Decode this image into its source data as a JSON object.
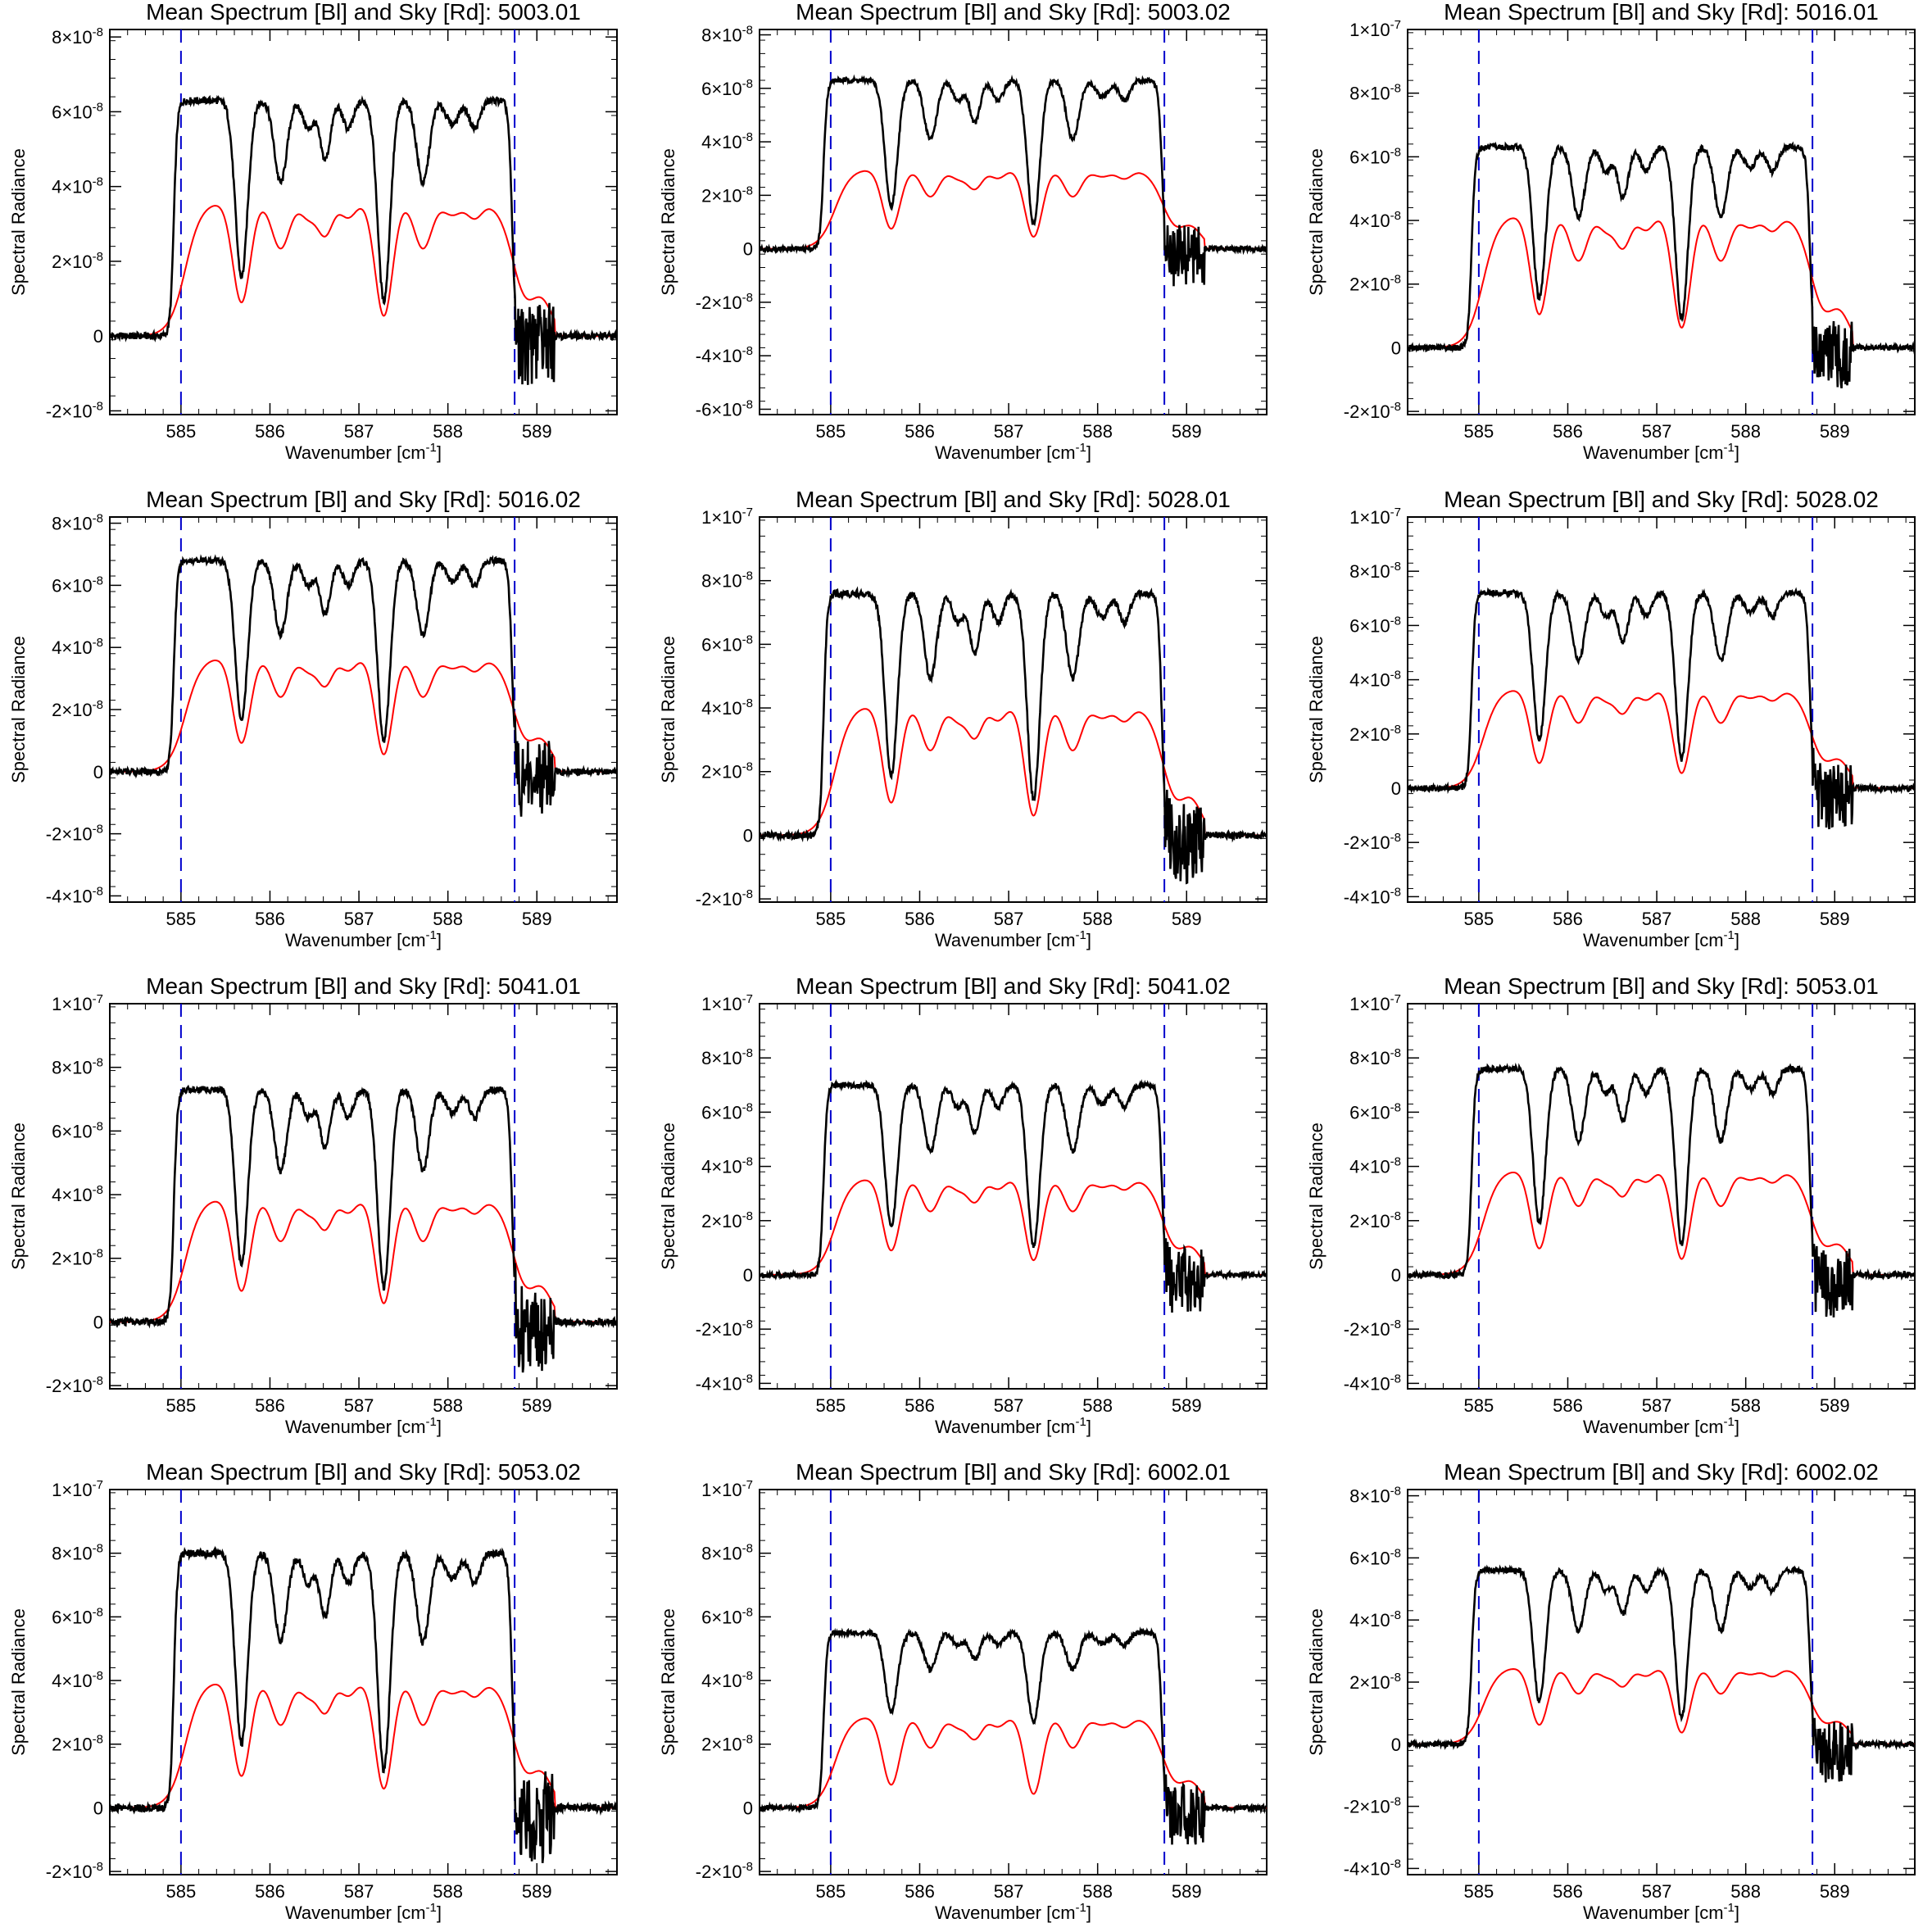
{
  "colors": {
    "spectrum": "#000000",
    "sky": "#ff0000",
    "boundary": "#0000cc",
    "background": "#ffffff"
  },
  "charts": [
    {
      "title": "Mean Spectrum [Bl] and Sky [Rd]: 5003.01"
    },
    {
      "title": "Mean Spectrum [Bl] and Sky [Rd]: 5003.02"
    },
    {
      "title": "Mean Spectrum [Bl] and Sky [Rd]: 5016.01"
    },
    {
      "title": "Mean Spectrum [Bl] and Sky [Rd]: 5016.02"
    },
    {
      "title": "Mean Spectrum [Bl] and Sky [Rd]: 5028.01"
    },
    {
      "title": "Mean Spectrum [Bl] and Sky [Rd]: 5028.02"
    },
    {
      "title": "Mean Spectrum [Bl] and Sky [Rd]: 5041.01"
    },
    {
      "title": "Mean Spectrum [Bl] and Sky [Rd]: 5041.02"
    },
    {
      "title": "Mean Spectrum [Bl] and Sky [Rd]: 5053.01"
    },
    {
      "title": "Mean Spectrum [Bl] and Sky [Rd]: 5053.02"
    },
    {
      "title": "Mean Spectrum [Bl] and Sky [Rd]: 6002.01"
    },
    {
      "title": "Mean Spectrum [Bl] and Sky [Rd]: 6002.02"
    }
  ],
  "chart_data": [
    {
      "type": "line",
      "title": "Mean Spectrum [Bl] and Sky [Rd]: 5003.01",
      "xlabel": "Wavenumber [cm⁻¹]",
      "ylabel": "Spectral Radiance",
      "xlim": [
        584.2,
        589.9
      ],
      "ylim": [
        -2.1e-08,
        8.2e-08
      ],
      "x_ticks": [
        585,
        586,
        587,
        588,
        589
      ],
      "y_ticks": [
        -2e-08,
        0,
        2e-08,
        4e-08,
        6e-08,
        8e-08
      ],
      "boundaries": [
        585.0,
        588.75
      ],
      "spectrum_level": 6.3e-08,
      "sky_level": 3.6e-08,
      "notes_dip": 1.0
    },
    {
      "type": "line",
      "title": "Mean Spectrum [Bl] and Sky [Rd]: 5003.02",
      "xlabel": "Wavenumber [cm⁻¹]",
      "ylabel": "Spectral Radiance",
      "xlim": [
        584.2,
        589.9
      ],
      "ylim": [
        -6.2e-08,
        8.2e-08
      ],
      "x_ticks": [
        585,
        586,
        587,
        588,
        589
      ],
      "y_ticks": [
        -6e-08,
        -4e-08,
        -2e-08,
        0,
        2e-08,
        4e-08,
        6e-08,
        8e-08
      ],
      "boundaries": [
        585.0,
        588.75
      ],
      "spectrum_level": 6.3e-08,
      "sky_level": 3e-08,
      "notes_dip": 1.0
    },
    {
      "type": "line",
      "title": "Mean Spectrum [Bl] and Sky [Rd]: 5016.01",
      "xlabel": "Wavenumber [cm⁻¹]",
      "ylabel": "Spectral Radiance",
      "xlim": [
        584.2,
        589.9
      ],
      "ylim": [
        -2.1e-08,
        1e-07
      ],
      "x_ticks": [
        585,
        586,
        587,
        588,
        589
      ],
      "y_ticks": [
        -2e-08,
        0,
        2e-08,
        4e-08,
        6e-08,
        8e-08,
        1e-07
      ],
      "boundaries": [
        585.0,
        588.75
      ],
      "spectrum_level": 6.3e-08,
      "sky_level": 4.2e-08,
      "notes_dip": 1.0
    },
    {
      "type": "line",
      "title": "Mean Spectrum [Bl] and Sky [Rd]: 5016.02",
      "xlabel": "Wavenumber [cm⁻¹]",
      "ylabel": "Spectral Radiance",
      "xlim": [
        584.2,
        589.9
      ],
      "ylim": [
        -4.2e-08,
        8.2e-08
      ],
      "x_ticks": [
        585,
        586,
        587,
        588,
        589
      ],
      "y_ticks": [
        -4e-08,
        -2e-08,
        0,
        2e-08,
        4e-08,
        6e-08,
        8e-08
      ],
      "boundaries": [
        585.0,
        588.75
      ],
      "spectrum_level": 6.8e-08,
      "sky_level": 3.7e-08,
      "notes_dip": 1.0
    },
    {
      "type": "line",
      "title": "Mean Spectrum [Bl] and Sky [Rd]: 5028.01",
      "xlabel": "Wavenumber [cm⁻¹]",
      "ylabel": "Spectral Radiance",
      "xlim": [
        584.2,
        589.9
      ],
      "ylim": [
        -2.1e-08,
        1e-07
      ],
      "x_ticks": [
        585,
        586,
        587,
        588,
        589
      ],
      "y_ticks": [
        -2e-08,
        0,
        2e-08,
        4e-08,
        6e-08,
        8e-08,
        1e-07
      ],
      "boundaries": [
        585.0,
        588.75
      ],
      "spectrum_level": 7.6e-08,
      "sky_level": 4.1e-08,
      "notes_dip": 1.0
    },
    {
      "type": "line",
      "title": "Mean Spectrum [Bl] and Sky [Rd]: 5028.02",
      "xlabel": "Wavenumber [cm⁻¹]",
      "ylabel": "Spectral Radiance",
      "xlim": [
        584.2,
        589.9
      ],
      "ylim": [
        -4.2e-08,
        1e-07
      ],
      "x_ticks": [
        585,
        586,
        587,
        588,
        589
      ],
      "y_ticks": [
        -4e-08,
        -2e-08,
        0,
        2e-08,
        4e-08,
        6e-08,
        8e-08,
        1e-07
      ],
      "boundaries": [
        585.0,
        588.75
      ],
      "spectrum_level": 7.2e-08,
      "sky_level": 3.7e-08,
      "notes_dip": 1.0
    },
    {
      "type": "line",
      "title": "Mean Spectrum [Bl] and Sky [Rd]: 5041.01",
      "xlabel": "Wavenumber [cm⁻¹]",
      "ylabel": "Spectral Radiance",
      "xlim": [
        584.2,
        589.9
      ],
      "ylim": [
        -2.1e-08,
        1e-07
      ],
      "x_ticks": [
        585,
        586,
        587,
        588,
        589
      ],
      "y_ticks": [
        -2e-08,
        0,
        2e-08,
        4e-08,
        6e-08,
        8e-08,
        1e-07
      ],
      "boundaries": [
        585.0,
        588.75
      ],
      "spectrum_level": 7.3e-08,
      "sky_level": 3.9e-08,
      "notes_dip": 1.0
    },
    {
      "type": "line",
      "title": "Mean Spectrum [Bl] and Sky [Rd]: 5041.02",
      "xlabel": "Wavenumber [cm⁻¹]",
      "ylabel": "Spectral Radiance",
      "xlim": [
        584.2,
        589.9
      ],
      "ylim": [
        -4.2e-08,
        1e-07
      ],
      "x_ticks": [
        585,
        586,
        587,
        588,
        589
      ],
      "y_ticks": [
        -4e-08,
        -2e-08,
        0,
        2e-08,
        4e-08,
        6e-08,
        8e-08,
        1e-07
      ],
      "boundaries": [
        585.0,
        588.75
      ],
      "spectrum_level": 7e-08,
      "sky_level": 3.6e-08,
      "notes_dip": 1.0
    },
    {
      "type": "line",
      "title": "Mean Spectrum [Bl] and Sky [Rd]: 5053.01",
      "xlabel": "Wavenumber [cm⁻¹]",
      "ylabel": "Spectral Radiance",
      "xlim": [
        584.2,
        589.9
      ],
      "ylim": [
        -4.2e-08,
        1e-07
      ],
      "x_ticks": [
        585,
        586,
        587,
        588,
        589
      ],
      "y_ticks": [
        -4e-08,
        -2e-08,
        0,
        2e-08,
        4e-08,
        6e-08,
        8e-08,
        1e-07
      ],
      "boundaries": [
        585.0,
        588.75
      ],
      "spectrum_level": 7.6e-08,
      "sky_level": 3.9e-08,
      "notes_dip": 1.0
    },
    {
      "type": "line",
      "title": "Mean Spectrum [Bl] and Sky [Rd]: 5053.02",
      "xlabel": "Wavenumber [cm⁻¹]",
      "ylabel": "Spectral Radiance",
      "xlim": [
        584.2,
        589.9
      ],
      "ylim": [
        -2.1e-08,
        1e-07
      ],
      "x_ticks": [
        585,
        586,
        587,
        588,
        589
      ],
      "y_ticks": [
        -2e-08,
        0,
        2e-08,
        4e-08,
        6e-08,
        8e-08,
        1e-07
      ],
      "boundaries": [
        585.0,
        588.75
      ],
      "spectrum_level": 8e-08,
      "sky_level": 4e-08,
      "notes_dip": 1.0
    },
    {
      "type": "line",
      "title": "Mean Spectrum [Bl] and Sky [Rd]: 6002.01",
      "xlabel": "Wavenumber [cm⁻¹]",
      "ylabel": "Spectral Radiance",
      "xlim": [
        584.2,
        589.9
      ],
      "ylim": [
        -2.1e-08,
        1e-07
      ],
      "x_ticks": [
        585,
        586,
        587,
        588,
        589
      ],
      "y_ticks": [
        -2e-08,
        0,
        2e-08,
        4e-08,
        6e-08,
        8e-08,
        1e-07
      ],
      "boundaries": [
        585.0,
        588.75
      ],
      "spectrum_level": 5.5e-08,
      "sky_level": 2.9e-08,
      "notes_dip": 0.6
    },
    {
      "type": "line",
      "title": "Mean Spectrum [Bl] and Sky [Rd]: 6002.02",
      "xlabel": "Wavenumber [cm⁻¹]",
      "ylabel": "Spectral Radiance",
      "xlim": [
        584.2,
        589.9
      ],
      "ylim": [
        -4.2e-08,
        8.2e-08
      ],
      "x_ticks": [
        585,
        586,
        587,
        588,
        589
      ],
      "y_ticks": [
        -4e-08,
        -2e-08,
        0,
        2e-08,
        4e-08,
        6e-08,
        8e-08
      ],
      "boundaries": [
        585.0,
        588.75
      ],
      "spectrum_level": 5.6e-08,
      "sky_level": 2.5e-08,
      "notes_dip": 1.0
    }
  ]
}
